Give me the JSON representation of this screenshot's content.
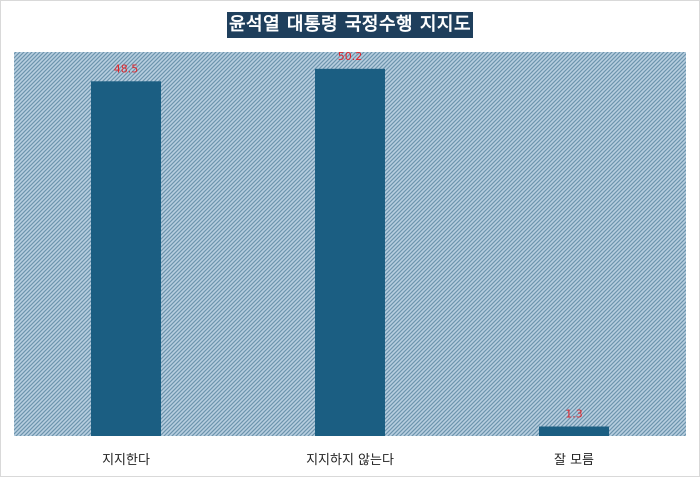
{
  "chart_data": {
    "type": "bar",
    "title": "윤석열 대통령 국정수행 지지도",
    "categories": [
      "지지한다",
      "지지하지 않는다",
      "잘 모름"
    ],
    "values": [
      48.5,
      50.2,
      1.3
    ],
    "value_labels": [
      "48.5",
      "50.2",
      "1.3"
    ],
    "ylim": [
      0,
      52.5
    ],
    "grid": false,
    "legend": "none",
    "colors": {
      "bar": "#1b5e82",
      "plot_background_a": "#b8cfe0",
      "plot_background_b": "#6d94ad",
      "value_label": "#e0262c",
      "title_background": "#1f3f5c",
      "title_text": "#ffffff"
    }
  }
}
